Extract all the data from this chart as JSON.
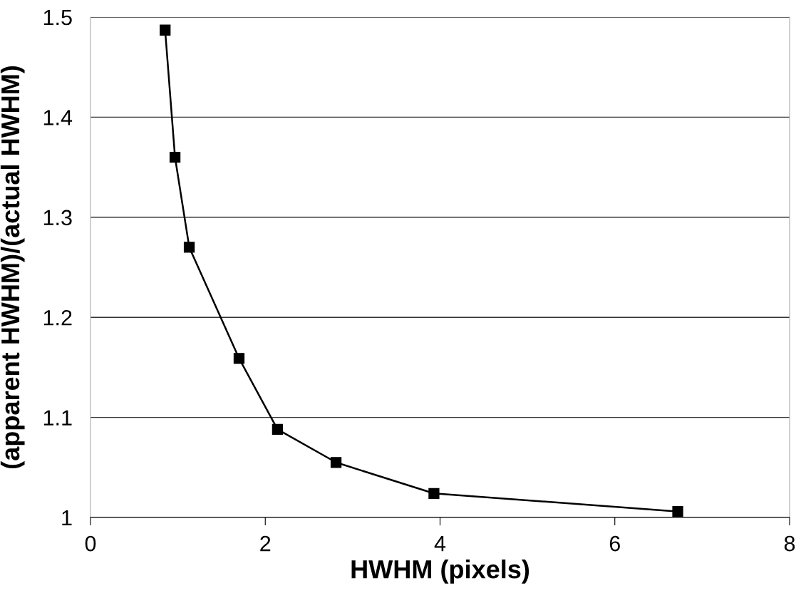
{
  "chart_data": {
    "type": "line",
    "xlabel": "HWHM (pixels)",
    "ylabel": "(apparent HWHM)/(actual HWHM)",
    "x": [
      0.854,
      0.967,
      1.13,
      1.7,
      2.14,
      2.81,
      3.93,
      6.72
    ],
    "series": [
      {
        "color": "#000000",
        "values": [
          1.487,
          1.36,
          1.27,
          1.159,
          1.088,
          1.055,
          1.024,
          1.006
        ]
      }
    ],
    "xlim": [
      0,
      8
    ],
    "xticks": [
      0,
      2,
      4,
      6,
      8
    ],
    "ylim": [
      1,
      1.5
    ],
    "yticks": [
      1,
      1.1,
      1.2,
      1.3,
      1.4,
      1.5
    ],
    "grid": "y",
    "marker": "square",
    "line_style": "solid"
  }
}
